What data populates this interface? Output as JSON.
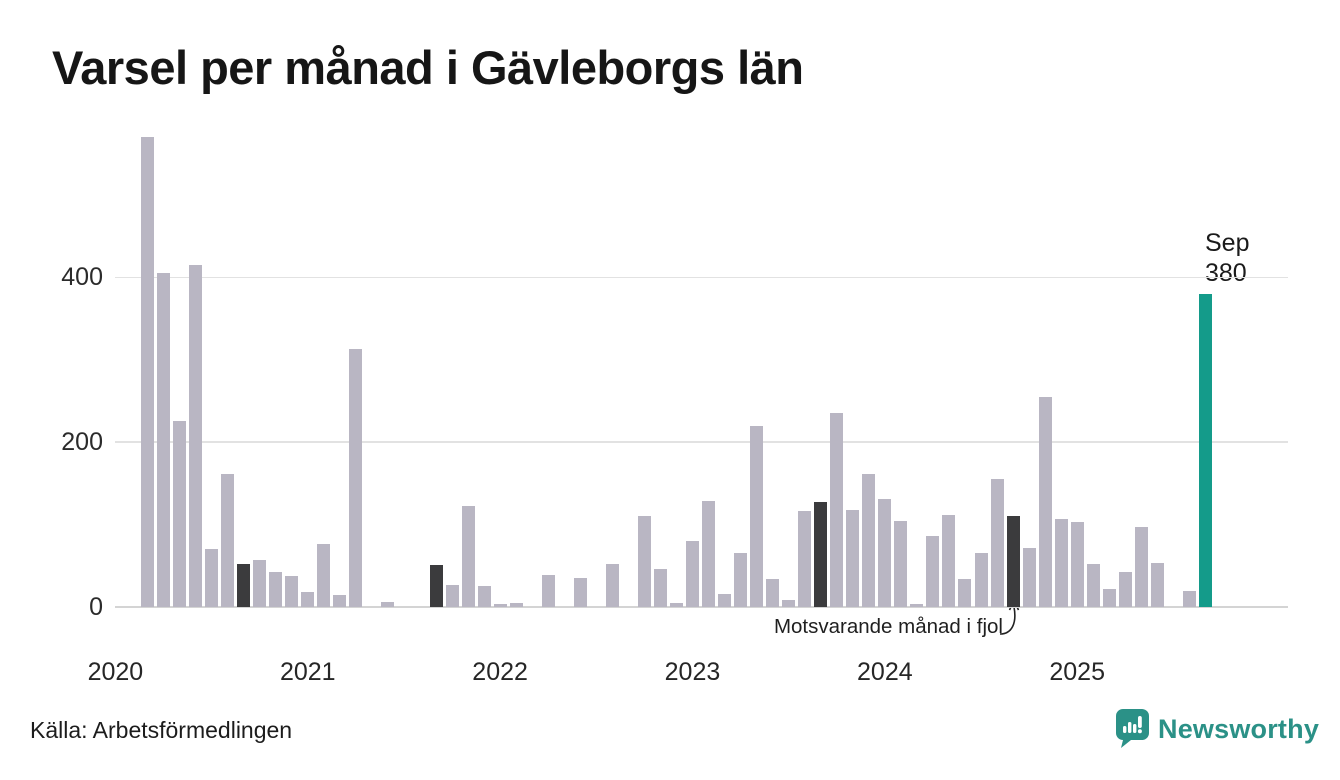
{
  "header": {
    "title": "Varsel per månad i Gävleborgs län"
  },
  "footer": {
    "source": "Källa: Arbetsförmedlingen",
    "brand": "Newsworthy"
  },
  "chart_data": {
    "type": "bar",
    "title": "Varsel per månad i Gävleborgs län",
    "start_month": "2020-01",
    "end_month": "2025-09",
    "values": [
      0,
      0,
      570,
      405,
      226,
      415,
      70,
      161,
      52,
      57,
      43,
      38,
      18,
      76,
      15,
      313,
      0,
      6,
      0,
      0,
      51,
      27,
      123,
      25,
      4,
      5,
      0,
      39,
      0,
      35,
      0,
      52,
      0,
      110,
      46,
      5,
      80,
      129,
      16,
      66,
      220,
      34,
      9,
      117,
      127,
      235,
      118,
      161,
      131,
      104,
      4,
      86,
      112,
      34,
      66,
      155,
      110,
      72,
      255,
      107,
      103,
      52,
      22,
      42,
      97,
      53,
      0,
      20,
      380
    ],
    "x_year_ticks": [
      "2020",
      "2021",
      "2022",
      "2023",
      "2024",
      "2025"
    ],
    "y_ticks": [
      0,
      200,
      400
    ],
    "ylim": [
      0,
      580
    ],
    "grid": "horizontal",
    "legend_position": "none",
    "annotation": "Motsvarande månad i fjol",
    "highlight_dark_months": [
      "2020-09",
      "2021-09",
      "2022-09",
      "2023-09",
      "2024-09"
    ],
    "highlight_current": {
      "month": "2025-09",
      "value": 380,
      "label_line1": "Sep",
      "label_line2": "380"
    },
    "colors": {
      "default_bar": "#b9b6c3",
      "previous_september_bar": "#3b3b3d",
      "current_bar": "#149b8a",
      "brand_teal": "#2b9187"
    }
  }
}
